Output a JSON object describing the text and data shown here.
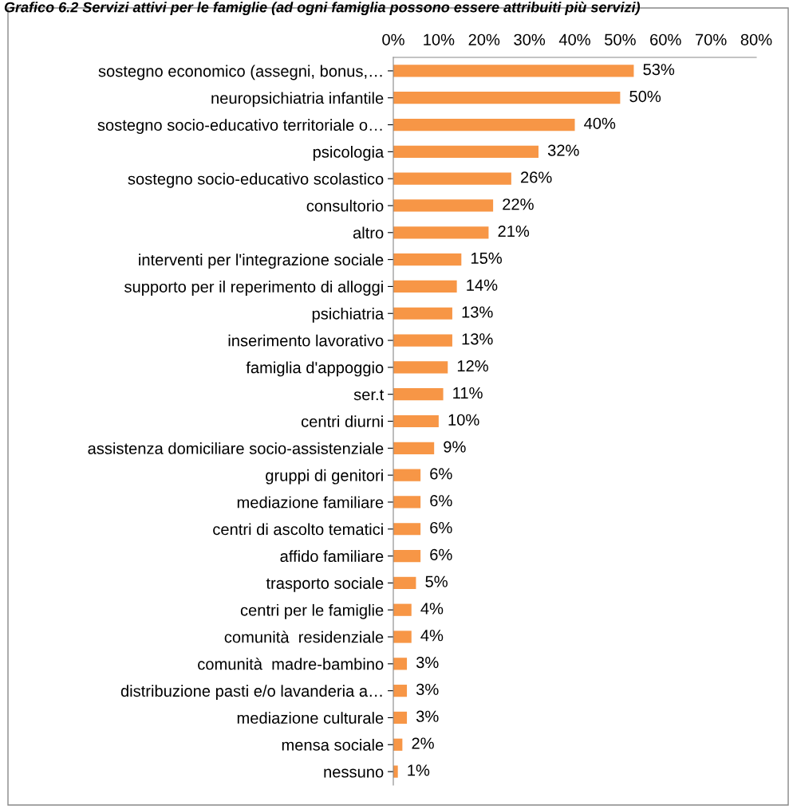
{
  "chart_data": {
    "type": "bar",
    "orientation": "horizontal",
    "title": "Grafico 6.2 Servizi attivi per le famiglie (ad ogni famiglia possono essere attribuiti più servizi)",
    "categories": [
      "sostegno economico (assegni, bonus,…",
      "neuropsichiatria infantile",
      "sostegno socio-educativo territoriale o…",
      "psicologia",
      "sostegno socio-educativo scolastico",
      "consultorio",
      "altro",
      "interventi per l'integrazione sociale",
      "supporto per il reperimento di alloggi",
      "psichiatria",
      "inserimento lavorativo",
      "famiglia d'appoggio",
      "ser.t",
      "centri diurni",
      "assistenza domiciliare socio-assistenziale",
      "gruppi di genitori",
      "mediazione familiare",
      "centri di ascolto tematici",
      "affido familiare",
      "trasporto sociale",
      "centri per le famiglie",
      "comunità  residenziale",
      "comunità  madre-bambino",
      "distribuzione pasti e/o lavanderia a…",
      "mediazione culturale",
      "mensa sociale",
      "nessuno"
    ],
    "values": [
      53,
      50,
      40,
      32,
      26,
      22,
      21,
      15,
      14,
      13,
      13,
      12,
      11,
      10,
      9,
      6,
      6,
      6,
      6,
      5,
      4,
      4,
      3,
      3,
      3,
      2,
      1
    ],
    "value_labels": [
      "53%",
      "50%",
      "40%",
      "32%",
      "26%",
      "22%",
      "21%",
      "15%",
      "14%",
      "13%",
      "13%",
      "12%",
      "11%",
      "10%",
      "9%",
      "6%",
      "6%",
      "6%",
      "6%",
      "5%",
      "4%",
      "4%",
      "3%",
      "3%",
      "3%",
      "2%",
      "1%"
    ],
    "color": "#f79646",
    "xlim": [
      0,
      80
    ],
    "xticks": [
      {
        "value": 0,
        "label": "0%"
      },
      {
        "value": 10,
        "label": "10%"
      },
      {
        "value": 20,
        "label": "20%"
      },
      {
        "value": 30,
        "label": "30%"
      },
      {
        "value": 40,
        "label": "40%"
      },
      {
        "value": 50,
        "label": "50%"
      },
      {
        "value": 60,
        "label": "60%"
      },
      {
        "value": 70,
        "label": "70%"
      },
      {
        "value": 80,
        "label": "80%"
      }
    ],
    "grid": false,
    "legend": false
  }
}
